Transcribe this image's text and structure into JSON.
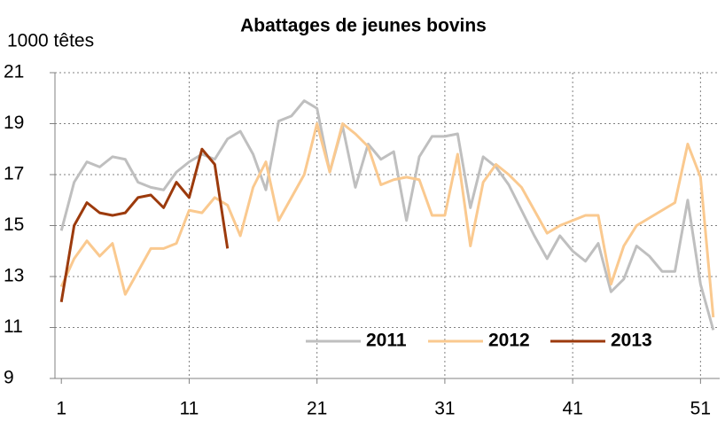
{
  "chart_data": {
    "type": "line",
    "title": "Abattages de jeunes bovins",
    "y_label": "1000 têtes",
    "x": [
      1,
      2,
      3,
      4,
      5,
      6,
      7,
      8,
      9,
      10,
      11,
      12,
      13,
      14,
      15,
      16,
      17,
      18,
      19,
      20,
      21,
      22,
      23,
      24,
      25,
      26,
      27,
      28,
      29,
      30,
      31,
      32,
      33,
      34,
      35,
      36,
      37,
      38,
      39,
      40,
      41,
      42,
      43,
      44,
      45,
      46,
      47,
      48,
      49,
      50,
      51,
      52
    ],
    "series": [
      {
        "name": "2011",
        "color": "#bfbfbf",
        "values": [
          14.8,
          16.7,
          17.5,
          17.3,
          17.7,
          17.6,
          16.7,
          16.5,
          16.4,
          17.1,
          17.5,
          17.8,
          17.6,
          18.4,
          18.7,
          17.8,
          16.4,
          19.1,
          19.3,
          19.9,
          19.6,
          17.1,
          18.9,
          16.5,
          18.2,
          17.6,
          17.9,
          15.2,
          17.7,
          18.5,
          18.5,
          18.6,
          15.7,
          17.7,
          17.3,
          16.6,
          15.6,
          14.6,
          13.7,
          14.6,
          14.0,
          13.6,
          14.3,
          12.4,
          12.9,
          14.2,
          13.8,
          13.2,
          13.2,
          16.0,
          12.7,
          10.9
        ]
      },
      {
        "name": "2012",
        "color": "#fac98f",
        "values": [
          12.6,
          13.7,
          14.4,
          13.8,
          14.3,
          12.3,
          13.2,
          14.1,
          14.1,
          14.3,
          15.6,
          15.5,
          16.1,
          15.8,
          14.6,
          16.5,
          17.5,
          15.2,
          16.1,
          17.0,
          19.0,
          17.1,
          19.0,
          18.6,
          18.1,
          16.6,
          16.8,
          16.9,
          16.8,
          15.4,
          15.4,
          17.8,
          14.2,
          16.7,
          17.4,
          17.0,
          16.5,
          15.6,
          14.7,
          15.0,
          15.2,
          15.4,
          15.4,
          12.7,
          14.2,
          15.0,
          15.3,
          15.6,
          15.9,
          18.2,
          16.9,
          11.4
        ]
      },
      {
        "name": "2013",
        "color": "#9c3a0c",
        "values": [
          12.0,
          15.0,
          15.9,
          15.5,
          15.4,
          15.5,
          16.1,
          16.2,
          15.7,
          16.7,
          16.1,
          18.0,
          17.4,
          14.1,
          null,
          null,
          null,
          null,
          null,
          null,
          null,
          null,
          null,
          null,
          null,
          null,
          null,
          null,
          null,
          null,
          null,
          null,
          null,
          null,
          null,
          null,
          null,
          null,
          null,
          null,
          null,
          null,
          null,
          null,
          null,
          null,
          null,
          null,
          null,
          null,
          null,
          null
        ]
      }
    ],
    "xlim": [
      0.5,
      52.5
    ],
    "xticks": [
      1,
      11,
      21,
      31,
      41,
      51
    ],
    "ylim": [
      9,
      21
    ],
    "yticks": [
      9,
      11,
      13,
      15,
      17,
      19,
      21
    ],
    "grid": true,
    "legend": "lower right"
  }
}
